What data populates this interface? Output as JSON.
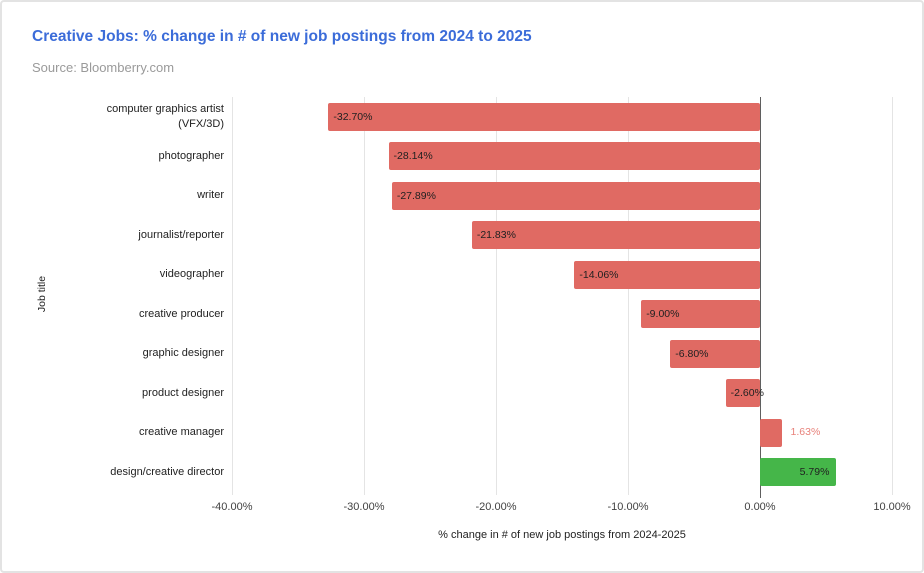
{
  "header": {
    "title": "Creative Jobs: % change in # of new job postings from 2024 to 2025",
    "source": "Source: Bloomberry.com"
  },
  "colors": {
    "title_blue": "#3b6cd9",
    "source_gray": "#9a9a9a",
    "bar_red": "#e06a63",
    "bar_green": "#45b649",
    "outside_label_pink": "#e8827b",
    "gridline": "#e4e4e4",
    "zero_line": "#5f5f5f"
  },
  "chart_data": {
    "type": "bar",
    "orientation": "horizontal",
    "title": "Creative Jobs: % change in # of new job postings from 2024 to 2025",
    "source": "Source: Bloomberry.com",
    "xlabel": "% change in # of new job postings from 2024-2025",
    "ylabel": "Job title",
    "xlim": [
      -40,
      10
    ],
    "grid": true,
    "legend": false,
    "x_ticks": [
      {
        "label": "-40.00%",
        "value": -40
      },
      {
        "label": "-30.00%",
        "value": -30
      },
      {
        "label": "-20.00%",
        "value": -20
      },
      {
        "label": "-10.00%",
        "value": -10
      },
      {
        "label": "0.00%",
        "value": 0
      },
      {
        "label": "10.00%",
        "value": 10
      }
    ],
    "bars": [
      {
        "category": "computer graphics artist\n(VFX/3D)",
        "value": -32.7,
        "label": "-32.70%",
        "color": "#e06a63"
      },
      {
        "category": "photographer",
        "value": -28.14,
        "label": "-28.14%",
        "color": "#e06a63"
      },
      {
        "category": "writer",
        "value": -27.89,
        "label": "-27.89%",
        "color": "#e06a63"
      },
      {
        "category": "journalist/reporter",
        "value": -21.83,
        "label": "-21.83%",
        "color": "#e06a63"
      },
      {
        "category": "videographer",
        "value": -14.06,
        "label": "-14.06%",
        "color": "#e06a63"
      },
      {
        "category": "creative producer",
        "value": -9.0,
        "label": "-9.00%",
        "color": "#e06a63"
      },
      {
        "category": "graphic designer",
        "value": -6.8,
        "label": "-6.80%",
        "color": "#e06a63"
      },
      {
        "category": "product designer",
        "value": -2.6,
        "label": "-2.60%",
        "color": "#e06a63"
      },
      {
        "category": "creative manager",
        "value": 1.63,
        "label": "1.63%",
        "color": "#e06a63"
      },
      {
        "category": "design/creative director",
        "value": 5.79,
        "label": "5.79%",
        "color": "#45b649"
      }
    ]
  }
}
